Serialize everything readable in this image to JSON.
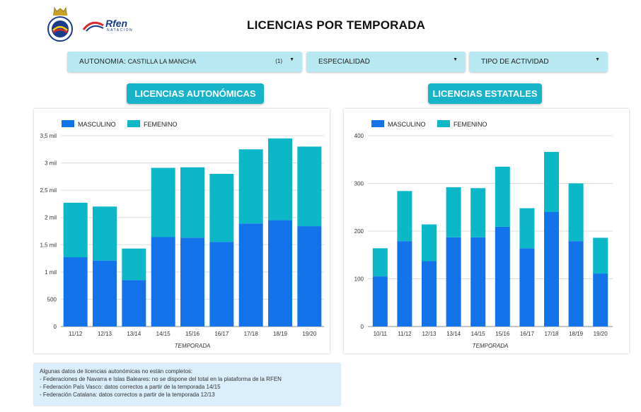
{
  "header": {
    "title": "LICENCIAS POR TEMPORADA",
    "brand_name": "Rfen",
    "brand_sub": "NATACION"
  },
  "filters": [
    {
      "label": "AUTONOMIA",
      "value": "CASTILLA LA MANCHA",
      "count": "(1)"
    },
    {
      "label": "ESPECIALIDAD"
    },
    {
      "label": "TIPO DE ACTIVIDAD"
    }
  ],
  "sections": {
    "left_title": "LICENCIAS AUTONÓMICAS",
    "right_title": "LICENCIAS ESTATALES"
  },
  "colors": {
    "masculino": "#1273eb",
    "femenino": "#0cb8c8",
    "accent": "#17b3c9"
  },
  "chart_data": [
    {
      "type": "bar",
      "stacked": true,
      "categories": [
        "11/12",
        "12/13",
        "13/14",
        "14/15",
        "15/16",
        "16/17",
        "17/18",
        "18/19",
        "19/20"
      ],
      "series": [
        {
          "name": "MASCULINO",
          "values": [
            1270,
            1210,
            850,
            1640,
            1630,
            1550,
            1890,
            1950,
            1840
          ]
        },
        {
          "name": "FEMENINO",
          "values": [
            1000,
            990,
            580,
            1270,
            1290,
            1250,
            1360,
            1500,
            1460
          ]
        }
      ],
      "xlabel": "TEMPORADA",
      "ylim": [
        0,
        3500
      ],
      "yticks": [
        0,
        500,
        1000,
        1500,
        2000,
        2500,
        3000,
        3500
      ],
      "ytick_labels": [
        "0",
        "500",
        "1 mil",
        "1,5 mil",
        "2 mil",
        "2,5 mil",
        "3 mil",
        "3,5 mil"
      ],
      "legend": "top-left",
      "grid": true
    },
    {
      "type": "bar",
      "stacked": true,
      "categories": [
        "10/11",
        "11/12",
        "12/13",
        "13/14",
        "14/15",
        "15/16",
        "16/17",
        "17/18",
        "18/19",
        "19/20"
      ],
      "series": [
        {
          "name": "MASCULINO",
          "values": [
            105,
            179,
            137,
            187,
            187,
            209,
            164,
            240,
            179,
            111
          ]
        },
        {
          "name": "FEMENINO",
          "values": [
            59,
            105,
            77,
            105,
            103,
            126,
            84,
            126,
            121,
            75
          ]
        }
      ],
      "xlabel": "TEMPORADA",
      "ylim": [
        0,
        400
      ],
      "yticks": [
        0,
        100,
        200,
        300,
        400
      ],
      "ytick_labels": [
        "0",
        "100",
        "200",
        "300",
        "400"
      ],
      "legend": "top-left",
      "grid": true
    }
  ],
  "notes": {
    "lines": [
      "Algunas datos de licencias autonómicas no están completos:",
      "- Federaciones de Navarra e  Islas Baleares: no se dispone del total en la plataforma de la RFEN",
      "- Federación País Vasco: datos correctos a partir de la temporada 14/15",
      "- Federación Catalana: datos correctos a partir de la temporada 12/13"
    ]
  }
}
